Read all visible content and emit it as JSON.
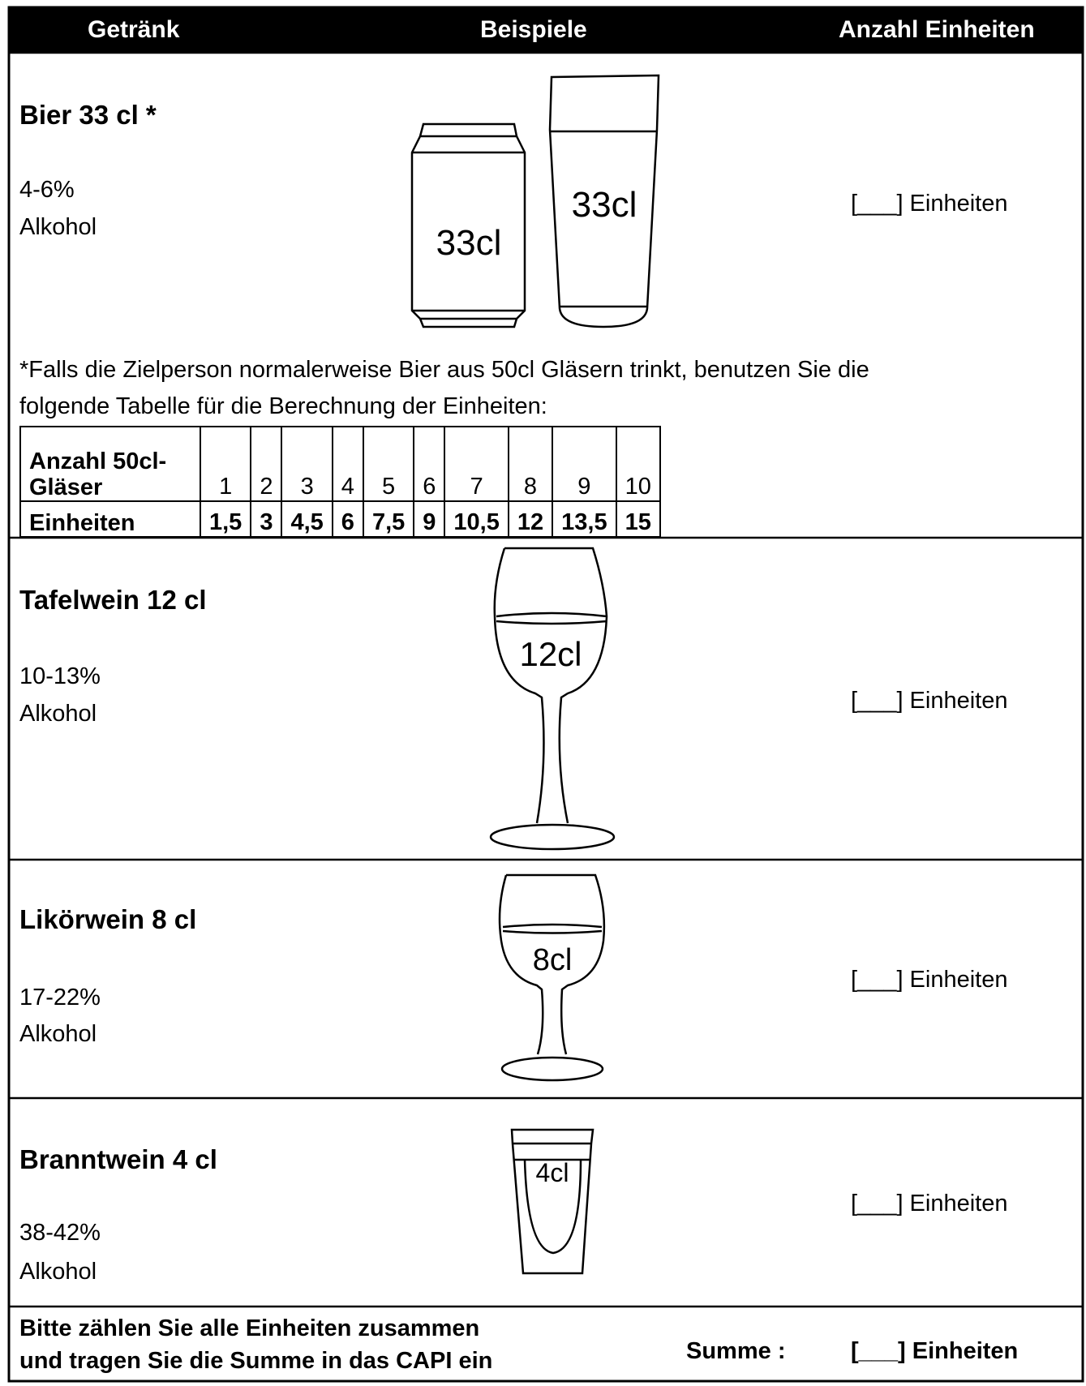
{
  "header": {
    "columns": [
      "Getränk",
      "Beispiele",
      "Anzahl Einheiten"
    ]
  },
  "drinks": [
    {
      "name": "Bier 33 cl *",
      "abv": "4-6%",
      "alcohol": "Alkohol",
      "examples": [
        "33cl",
        "33cl"
      ],
      "units": "[___] Einheiten"
    },
    {
      "name": "Tafelwein 12 cl",
      "abv": "10-13%",
      "alcohol": "Alkohol",
      "examples": [
        "12cl"
      ],
      "units": "[___] Einheiten"
    },
    {
      "name": "Likörwein 8 cl",
      "abv": "17-22%",
      "alcohol": "Alkohol",
      "examples": [
        "8cl"
      ],
      "units": "[___] Einheiten"
    },
    {
      "name": "Branntwein 4 cl",
      "abv": "38-42%",
      "alcohol": "Alkohol",
      "examples": [
        "4cl"
      ],
      "units": "[___] Einheiten"
    }
  ],
  "note": {
    "lines": [
      "*Falls die Zielperson normalerweise Bier aus 50cl Gläsern trinkt, benutzen Sie die",
      "folgende Tabelle für die Berechnung der Einheiten:"
    ]
  },
  "table": {
    "rows": [
      [
        "Anzahl 50cl-Gläser",
        "1",
        "2",
        "3",
        "4",
        "5",
        "6",
        "7",
        "8",
        "9",
        "10"
      ],
      [
        "Einheiten",
        "1,5",
        "3",
        "4,5",
        "6",
        "7,5",
        "9",
        "10,5",
        "12",
        "13,5",
        "15"
      ]
    ]
  },
  "footer": {
    "instruction": [
      "Bitte zählen Sie alle Einheiten zusammen",
      "und tragen Sie die Summe in das CAPI ein"
    ],
    "sum_label": "Summe :",
    "sum_units": "[___] Einheiten"
  }
}
